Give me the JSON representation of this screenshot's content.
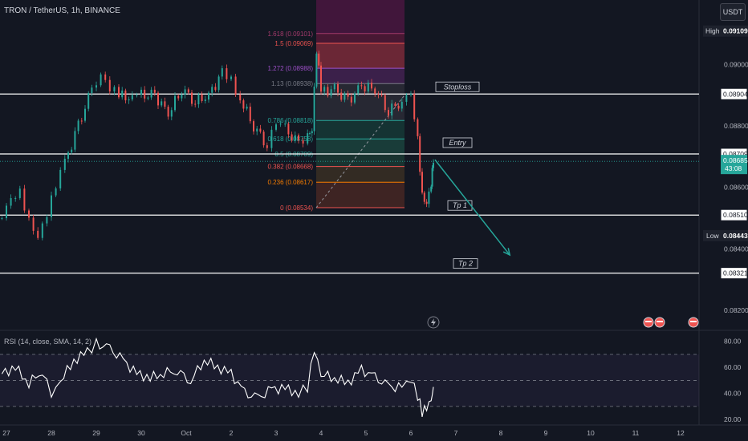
{
  "header": {
    "symbol_line": "TRON / TetherUS, 1h, BINANCE",
    "currency": "USDT",
    "rsi_label": "RSI (14, close, SMA, 14, 2)"
  },
  "price_tags": {
    "high_label": "High",
    "high_value": "0.09109",
    "low_label": "Low",
    "low_value": "0.08443",
    "current_value": "0.08685",
    "countdown": "43:08"
  },
  "level_labels": {
    "stoploss": "Stoploss",
    "entry": "Entry",
    "tp1": "Tp 1",
    "tp2": "Tp 2"
  },
  "colors": {
    "bg": "#131722",
    "up": "#26a69a",
    "down": "#ef5350",
    "level_line": "#ffffff",
    "rsi_line": "#ffffff",
    "arrow": "#26a69a"
  },
  "chart_data": {
    "type": "line",
    "title": "TRON / TetherUS, 1h, BINANCE",
    "x_ticks": [
      "27",
      "28",
      "29",
      "30",
      "Oct",
      "2",
      "3",
      "4",
      "5",
      "6",
      "7",
      "8",
      "9",
      "10",
      "11",
      "12"
    ],
    "y_ticks": [
      "0.09000",
      "0.08800",
      "0.08600",
      "0.08400",
      "0.08200"
    ],
    "ylim": [
      0.0814,
      0.0921
    ],
    "price_path": {
      "x": [
        26.9,
        27.1,
        27.3,
        27.5,
        27.7,
        27.9,
        28.1,
        28.3,
        28.6,
        28.9,
        29.1,
        29.3,
        29.5,
        29.8,
        30.0,
        30.3,
        30.6,
        30.9,
        31.2,
        31.5,
        31.8,
        32.0,
        32.2,
        32.5,
        32.8,
        33.0,
        33.2,
        33.5,
        33.7,
        33.8,
        33.9,
        34.0,
        34.3,
        34.6,
        34.9,
        35.2,
        35.5,
        35.8,
        36.0,
        36.15,
        36.25,
        36.35,
        36.45,
        36.5
      ],
      "close": [
        0.085,
        0.0855,
        0.0858,
        0.085,
        0.0845,
        0.0852,
        0.086,
        0.0868,
        0.088,
        0.0892,
        0.0898,
        0.0893,
        0.089,
        0.0889,
        0.089,
        0.089,
        0.0884,
        0.0892,
        0.0888,
        0.089,
        0.0897,
        0.0895,
        0.0889,
        0.088,
        0.0874,
        0.088,
        0.0879,
        0.0874,
        0.0878,
        0.088,
        0.0905,
        0.0891,
        0.0892,
        0.0888,
        0.0893,
        0.0892,
        0.0885,
        0.0888,
        0.0889,
        0.0875,
        0.0858,
        0.0856,
        0.0862,
        0.0868
      ]
    },
    "fibonacci": {
      "levels": [
        {
          "label": "1.618 (0.09101)",
          "value": 0.09101
        },
        {
          "label": "1.5 (0.09069)",
          "value": 0.09069
        },
        {
          "label": "1.272 (0.08988)",
          "value": 0.08988
        },
        {
          "label": "1.13 (0.08938)",
          "value": 0.08938
        },
        {
          "label": "0.786 (0.08818)",
          "value": 0.08818
        },
        {
          "label": "0.618 (0.08758)",
          "value": 0.08758
        },
        {
          "label": "0.5 (0.08709)",
          "value": 0.08709
        },
        {
          "label": "0.382 (0.08668)",
          "value": 0.08668
        },
        {
          "label": "0.236 (0.08617)",
          "value": 0.08617
        },
        {
          "label": "0 (0.08534)",
          "value": 0.08534
        }
      ]
    },
    "horizontal_levels": [
      {
        "name": "Stoploss",
        "value": 0.08904,
        "label": "0.08904"
      },
      {
        "name": "Entry",
        "value": 0.08709,
        "label": "0.08709"
      },
      {
        "name": "Tp 1",
        "value": 0.0851,
        "label": "0.08510"
      },
      {
        "name": "Tp 2",
        "value": 0.08321,
        "label": "0.08321"
      }
    ],
    "projection": {
      "from": [
        36.5,
        0.0869
      ],
      "to": [
        38.2,
        0.0838
      ]
    },
    "rsi": {
      "y_ticks": [
        "80.00",
        "60.00",
        "40.00",
        "20.00"
      ],
      "ylim": [
        17,
        86
      ],
      "bands": [
        70,
        50,
        30
      ],
      "x": [
        26.9,
        27.2,
        27.5,
        27.8,
        28.0,
        28.2,
        28.5,
        28.8,
        29.0,
        29.3,
        29.6,
        29.9,
        30.2,
        30.5,
        30.8,
        31.1,
        31.4,
        31.7,
        32.0,
        32.3,
        32.6,
        32.9,
        33.2,
        33.5,
        33.7,
        33.85,
        34.0,
        34.3,
        34.6,
        34.9,
        35.2,
        35.5,
        35.8,
        36.0,
        36.15,
        36.25,
        36.35,
        36.45,
        36.5
      ],
      "values": [
        55,
        60,
        48,
        58,
        40,
        50,
        65,
        72,
        78,
        74,
        65,
        55,
        52,
        56,
        58,
        50,
        66,
        60,
        55,
        40,
        36,
        43,
        44,
        40,
        45,
        75,
        55,
        52,
        48,
        58,
        52,
        45,
        44,
        50,
        38,
        26,
        30,
        36,
        45
      ]
    }
  }
}
